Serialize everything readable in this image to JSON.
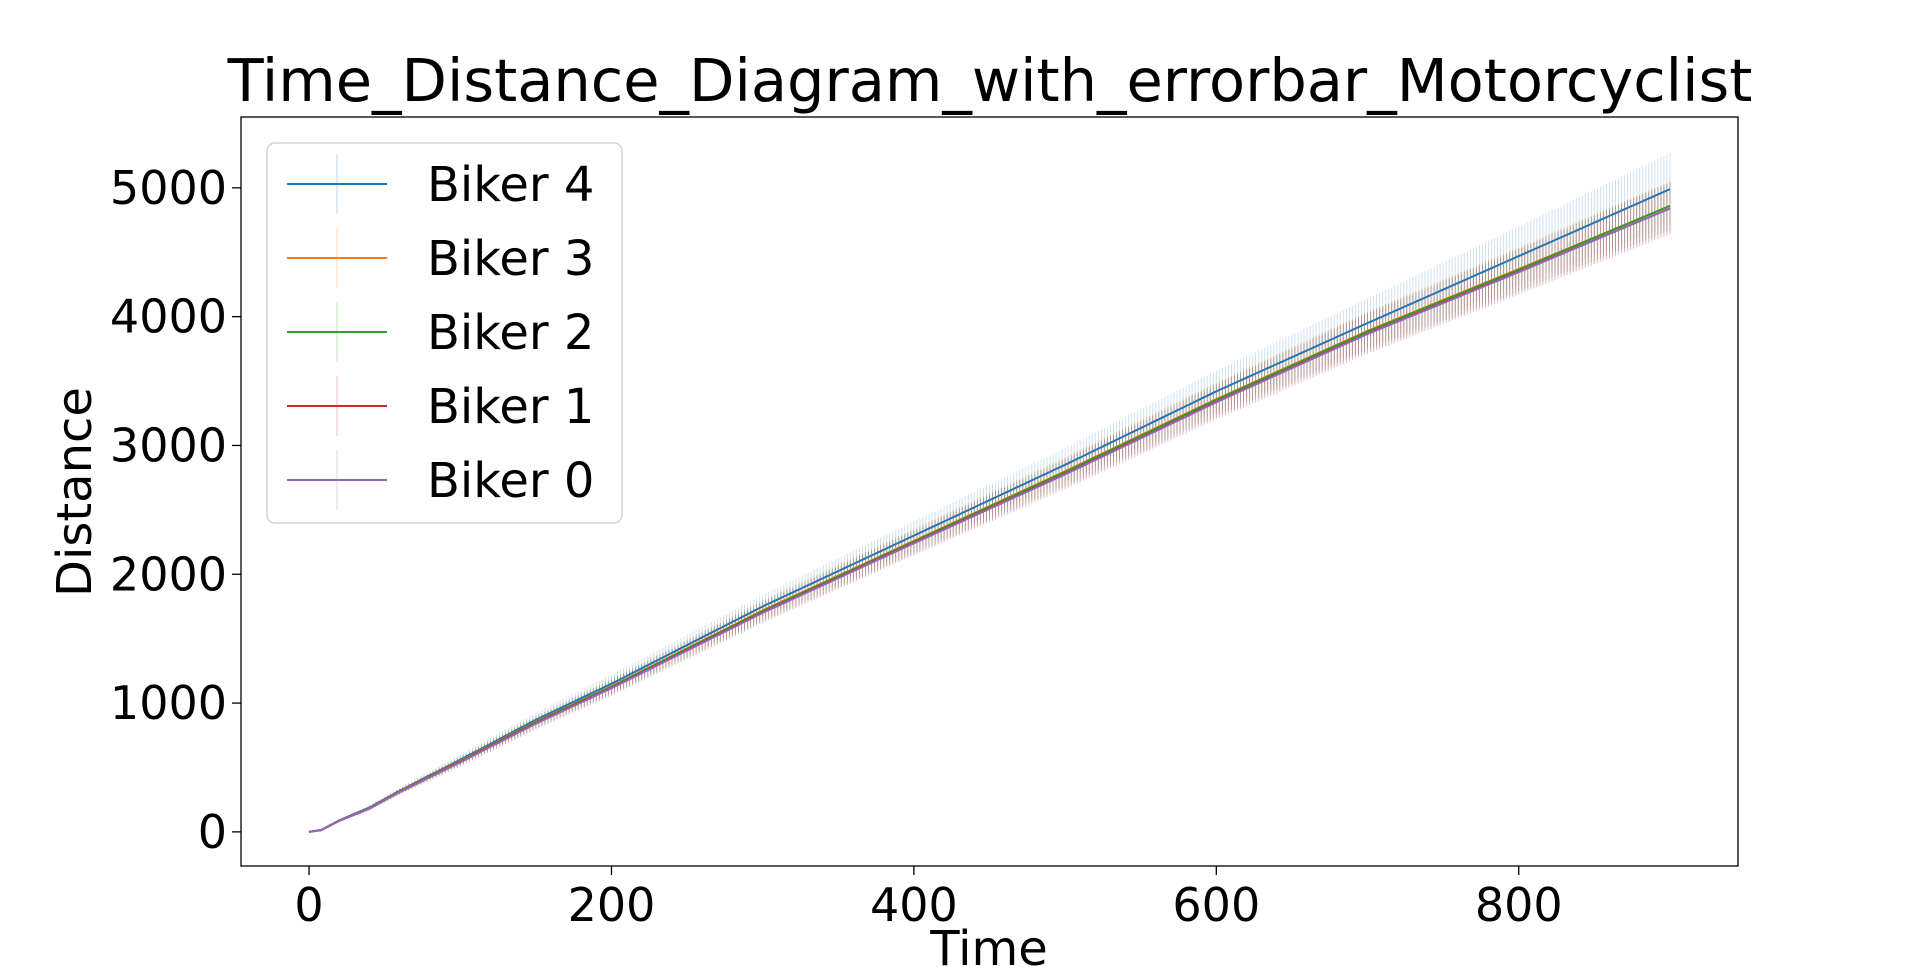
{
  "chart_data": {
    "type": "line",
    "title": "Time_Distance_Diagram_with_errorbar_Motorcyclist",
    "xlabel": "Time",
    "ylabel": "Distance",
    "xlim": [
      -45,
      945
    ],
    "ylim": [
      -265,
      5550
    ],
    "x_ticks": [
      0,
      200,
      400,
      600,
      800
    ],
    "y_ticks": [
      0,
      1000,
      2000,
      3000,
      4000,
      5000
    ],
    "grid": false,
    "legend_position": "upper-left",
    "error_bars": true,
    "series": [
      {
        "name": "Biker 4",
        "color": "#1f77b4",
        "points": [
          [
            0,
            0
          ],
          [
            8,
            15
          ],
          [
            20,
            90
          ],
          [
            40,
            190
          ],
          [
            60,
            320
          ],
          [
            100,
            560
          ],
          [
            150,
            870
          ],
          [
            200,
            1150
          ],
          [
            300,
            1750
          ],
          [
            400,
            2300
          ],
          [
            500,
            2850
          ],
          [
            600,
            3420
          ],
          [
            700,
            3950
          ],
          [
            800,
            4470
          ],
          [
            900,
            4990
          ]
        ],
        "error": [
          [
            0,
            0
          ],
          [
            100,
            40
          ],
          [
            200,
            70
          ],
          [
            300,
            90
          ],
          [
            400,
            110
          ],
          [
            500,
            130
          ],
          [
            600,
            160
          ],
          [
            700,
            190
          ],
          [
            800,
            230
          ],
          [
            900,
            280
          ]
        ]
      },
      {
        "name": "Biker 3",
        "color": "#ff7f0e",
        "points": [
          [
            0,
            0
          ],
          [
            8,
            14
          ],
          [
            20,
            88
          ],
          [
            40,
            185
          ],
          [
            60,
            315
          ],
          [
            100,
            552
          ],
          [
            150,
            855
          ],
          [
            200,
            1130
          ],
          [
            300,
            1720
          ],
          [
            400,
            2260
          ],
          [
            500,
            2800
          ],
          [
            600,
            3360
          ],
          [
            700,
            3890
          ],
          [
            800,
            4370
          ],
          [
            900,
            4860
          ]
        ],
        "error": [
          [
            0,
            0
          ],
          [
            100,
            35
          ],
          [
            200,
            60
          ],
          [
            300,
            80
          ],
          [
            400,
            95
          ],
          [
            500,
            110
          ],
          [
            600,
            130
          ],
          [
            700,
            150
          ],
          [
            800,
            170
          ],
          [
            900,
            190
          ]
        ]
      },
      {
        "name": "Biker 2",
        "color": "#2ca02c",
        "points": [
          [
            0,
            0
          ],
          [
            8,
            14
          ],
          [
            20,
            87
          ],
          [
            40,
            184
          ],
          [
            60,
            313
          ],
          [
            100,
            550
          ],
          [
            150,
            852
          ],
          [
            200,
            1128
          ],
          [
            300,
            1715
          ],
          [
            400,
            2255
          ],
          [
            500,
            2795
          ],
          [
            600,
            3355
          ],
          [
            700,
            3885
          ],
          [
            800,
            4365
          ],
          [
            900,
            4860
          ]
        ],
        "error": [
          [
            0,
            0
          ],
          [
            100,
            35
          ],
          [
            200,
            60
          ],
          [
            300,
            80
          ],
          [
            400,
            95
          ],
          [
            500,
            110
          ],
          [
            600,
            130
          ],
          [
            700,
            150
          ],
          [
            800,
            170
          ],
          [
            900,
            190
          ]
        ]
      },
      {
        "name": "Biker 1",
        "color": "#d62728",
        "points": [
          [
            0,
            0
          ],
          [
            8,
            13
          ],
          [
            20,
            86
          ],
          [
            40,
            182
          ],
          [
            60,
            310
          ],
          [
            100,
            545
          ],
          [
            150,
            845
          ],
          [
            200,
            1120
          ],
          [
            300,
            1705
          ],
          [
            400,
            2245
          ],
          [
            500,
            2780
          ],
          [
            600,
            3340
          ],
          [
            700,
            3870
          ],
          [
            800,
            4350
          ],
          [
            900,
            4840
          ]
        ],
        "error": [
          [
            0,
            0
          ],
          [
            100,
            35
          ],
          [
            200,
            60
          ],
          [
            300,
            80
          ],
          [
            400,
            95
          ],
          [
            500,
            115
          ],
          [
            600,
            135
          ],
          [
            700,
            155
          ],
          [
            800,
            175
          ],
          [
            900,
            200
          ]
        ]
      },
      {
        "name": "Biker 0",
        "color": "#9467bd",
        "points": [
          [
            0,
            0
          ],
          [
            8,
            13
          ],
          [
            20,
            85
          ],
          [
            40,
            180
          ],
          [
            60,
            308
          ],
          [
            100,
            540
          ],
          [
            150,
            840
          ],
          [
            200,
            1115
          ],
          [
            300,
            1700
          ],
          [
            400,
            2240
          ],
          [
            500,
            2775
          ],
          [
            600,
            3335
          ],
          [
            700,
            3865
          ],
          [
            800,
            4345
          ],
          [
            900,
            4840
          ]
        ],
        "error": [
          [
            0,
            0
          ],
          [
            100,
            35
          ],
          [
            200,
            60
          ],
          [
            300,
            80
          ],
          [
            400,
            95
          ],
          [
            500,
            115
          ],
          [
            600,
            135
          ],
          [
            700,
            155
          ],
          [
            800,
            175
          ],
          [
            900,
            200
          ]
        ]
      }
    ]
  }
}
